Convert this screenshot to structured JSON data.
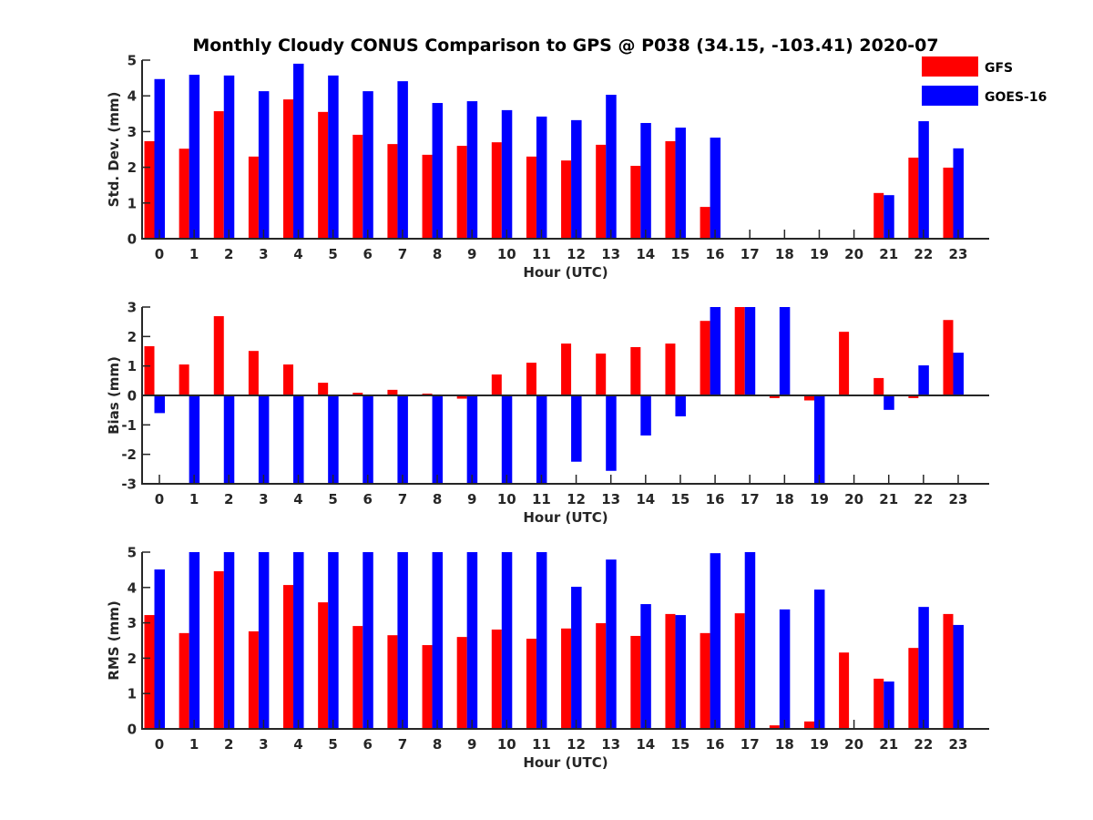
{
  "chart_data": {
    "type": "bar",
    "title": "Monthly Cloudy CONUS Comparison to GPS @ P038 (34.15, -103.41) 2020-07",
    "legend": {
      "placement": "top-right",
      "entries": [
        {
          "name": "GFS",
          "color": "#ff0000"
        },
        {
          "name": "GOES-16",
          "color": "#0000ff"
        }
      ]
    },
    "categories": [
      "0",
      "1",
      "2",
      "3",
      "4",
      "5",
      "6",
      "7",
      "8",
      "9",
      "10",
      "11",
      "12",
      "13",
      "14",
      "15",
      "16",
      "17",
      "18",
      "19",
      "20",
      "21",
      "22",
      "23"
    ],
    "panels": [
      {
        "id": "stddev",
        "xlabel": "Hour (UTC)",
        "ylabel": "Std. Dev. (mm)",
        "ylim": [
          0,
          5
        ],
        "yticks": [
          0,
          1,
          2,
          3,
          4,
          5
        ],
        "zero_line": false,
        "series": [
          {
            "name": "GFS",
            "color": "#ff0000",
            "values": [
              2.73,
              2.52,
              3.57,
              2.3,
              3.9,
              3.55,
              2.91,
              2.65,
              2.35,
              2.6,
              2.7,
              2.3,
              2.19,
              2.63,
              2.04,
              2.73,
              0.89,
              null,
              null,
              null,
              null,
              1.28,
              2.27,
              1.99
            ]
          },
          {
            "name": "GOES-16",
            "color": "#0000ff",
            "values": [
              4.47,
              4.59,
              4.57,
              4.13,
              4.9,
              4.57,
              4.13,
              4.41,
              3.8,
              3.85,
              3.6,
              3.42,
              3.32,
              4.03,
              3.24,
              3.11,
              2.83,
              null,
              null,
              null,
              null,
              1.22,
              3.29,
              2.53
            ]
          }
        ]
      },
      {
        "id": "bias",
        "xlabel": "Hour (UTC)",
        "ylabel": "Bias (mm)",
        "ylim": [
          -3,
          3
        ],
        "yticks": [
          -3,
          -2,
          -1,
          0,
          1,
          2,
          3
        ],
        "zero_line": true,
        "series": [
          {
            "name": "GFS",
            "color": "#ff0000",
            "values": [
              1.67,
              1.05,
              2.69,
              1.51,
              1.05,
              0.43,
              0.09,
              0.19,
              0.06,
              -0.11,
              0.71,
              1.11,
              1.76,
              1.42,
              1.64,
              1.76,
              2.53,
              3.0,
              -0.09,
              -0.17,
              2.16,
              0.59,
              -0.09,
              2.56
            ]
          },
          {
            "name": "GOES-16",
            "color": "#0000ff",
            "values": [
              -0.6,
              -3.0,
              -3.0,
              -3.0,
              -3.0,
              -3.0,
              -3.0,
              -3.0,
              -3.0,
              -3.0,
              -3.0,
              -3.0,
              -2.25,
              -2.56,
              -1.36,
              -0.71,
              3.0,
              3.0,
              3.0,
              -3.0,
              null,
              -0.49,
              1.02,
              1.45
            ]
          }
        ]
      },
      {
        "id": "rms",
        "xlabel": "Hour (UTC)",
        "ylabel": "RMS (mm)",
        "ylim": [
          0,
          5
        ],
        "yticks": [
          0,
          1,
          2,
          3,
          4,
          5
        ],
        "zero_line": false,
        "series": [
          {
            "name": "GFS",
            "color": "#ff0000",
            "values": [
              3.22,
              2.71,
              4.46,
              2.76,
              4.07,
              3.58,
              2.91,
              2.65,
              2.37,
              2.6,
              2.81,
              2.55,
              2.84,
              2.99,
              2.63,
              3.25,
              2.71,
              3.27,
              0.1,
              0.21,
              2.16,
              1.42,
              2.29,
              3.25
            ]
          },
          {
            "name": "GOES-16",
            "color": "#0000ff",
            "values": [
              4.51,
              5.0,
              5.0,
              5.0,
              5.0,
              5.0,
              5.0,
              5.0,
              5.0,
              5.0,
              5.0,
              5.0,
              4.02,
              4.79,
              3.53,
              3.22,
              4.97,
              5.0,
              3.38,
              3.94,
              0.01,
              1.34,
              3.45,
              2.94
            ]
          }
        ]
      }
    ]
  }
}
